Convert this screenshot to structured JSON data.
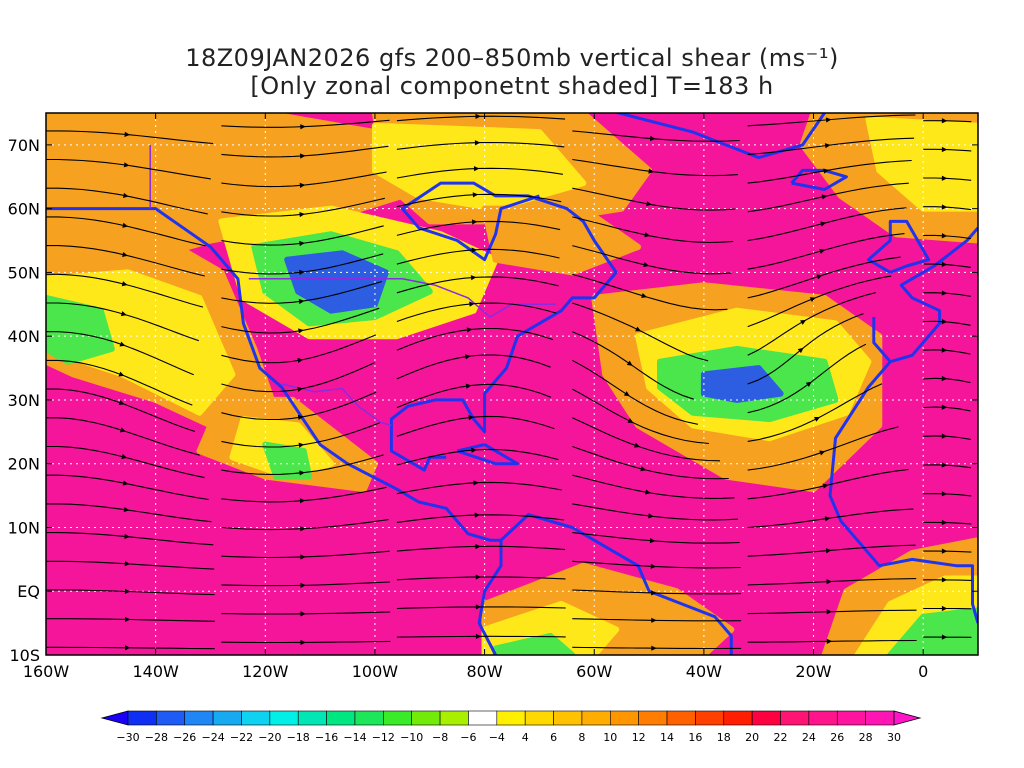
{
  "title": {
    "line1": "18Z09JAN2026 gfs 200–850mb vertical shear (ms⁻¹)",
    "line2": "[Only zonal componetnt shaded] T=183 h"
  },
  "map": {
    "lon_range": [
      -160,
      10
    ],
    "lat_range": [
      -10,
      75
    ],
    "lat_ticks": [
      {
        "value": 70,
        "label": "70N"
      },
      {
        "value": 60,
        "label": "60N"
      },
      {
        "value": 50,
        "label": "50N"
      },
      {
        "value": 40,
        "label": "40N"
      },
      {
        "value": 30,
        "label": "30N"
      },
      {
        "value": 20,
        "label": "20N"
      },
      {
        "value": 10,
        "label": "10N"
      },
      {
        "value": 0,
        "label": "EQ"
      },
      {
        "value": -10,
        "label": "10S"
      }
    ],
    "lon_ticks": [
      {
        "value": -160,
        "label": "160W"
      },
      {
        "value": -140,
        "label": "140W"
      },
      {
        "value": -120,
        "label": "120W"
      },
      {
        "value": -100,
        "label": "100W"
      },
      {
        "value": -80,
        "label": "80W"
      },
      {
        "value": -60,
        "label": "60W"
      },
      {
        "value": -40,
        "label": "40W"
      },
      {
        "value": -20,
        "label": "20W"
      },
      {
        "value": 0,
        "label": "0"
      }
    ],
    "grid": "dotted",
    "colors": {
      "strong_shear": "#f5159b",
      "orange": "#f7a120",
      "yellow": "#ffe81a",
      "green": "#4be64b",
      "blue": "#2d5de0",
      "coast": "#2233ee",
      "border": "#8a2be2",
      "streamline": "#000000"
    }
  },
  "colorbar": {
    "labels": [
      "−30",
      "−28",
      "−26",
      "−24",
      "−22",
      "−20",
      "−18",
      "−16",
      "−14",
      "−12",
      "−10",
      "−8",
      "−6",
      "−4",
      "4",
      "6",
      "8",
      "10",
      "12",
      "14",
      "16",
      "18",
      "20",
      "22",
      "24",
      "26",
      "28",
      "30"
    ],
    "colors": [
      "#1a00f5",
      "#0f2ff5",
      "#1f5cf5",
      "#1f86f5",
      "#17aaf0",
      "#0fd2f0",
      "#00f0e8",
      "#00e6b4",
      "#00e680",
      "#1de65a",
      "#3aeb2a",
      "#73eb0a",
      "#a8f000",
      "#ffffff",
      "#fff000",
      "#ffd800",
      "#ffc200",
      "#ffad00",
      "#ff9600",
      "#ff7d00",
      "#ff6000",
      "#ff4000",
      "#ff1e00",
      "#ff0040",
      "#ff1474",
      "#ff148c",
      "#ff14a0",
      "#ff14b4",
      "#ff14c8"
    ]
  }
}
